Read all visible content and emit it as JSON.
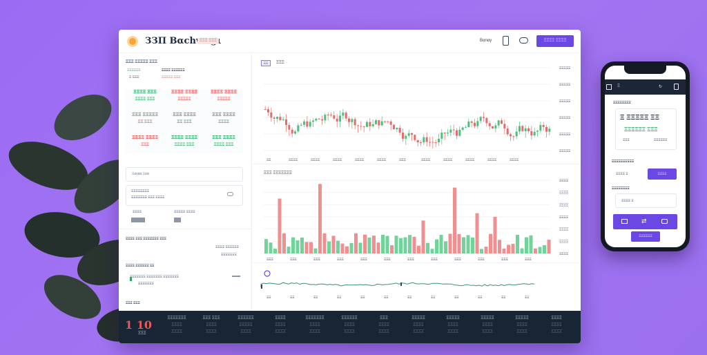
{
  "colors": {
    "background": "#a274f2",
    "accent": "#6b47e3",
    "up": "#2fa464",
    "down": "#e05a5a",
    "ticker_bg": "#172534"
  },
  "header": {
    "brand": "ЗЗΠ Βαchwαgι",
    "badge": "ΞΞΞ ΞΞΞ",
    "nav_link": "Βαnαγ",
    "phone_icon": "phone-icon",
    "toggle_icon": "toggle-icon",
    "signup": "ΞΞΞΞ ΞΞΞΞ"
  },
  "left_panel": {
    "title": "ΞΞΞ ΞΞΞΞΞ ΞΞΞ",
    "price_label": "ΞΞΞΞΞΞ",
    "price_value": "Ξ ΞΞΞ",
    "change_label": "ΞΞΞΞ ΞΞΞΞΞΞ",
    "change_value": "ΞΞΞΞΞ ΞΞΞ",
    "pairs": [
      {
        "name": "ΞΞΞΞ ΞΞΞ",
        "value": "ΞΞΞΞ ΞΞΞ",
        "trend": "up"
      },
      {
        "name": "ΞΞΞΞ ΞΞΞΞ",
        "value": "ΞΞΞΞΞ",
        "trend": "down"
      },
      {
        "name": "ΞΞΞΞ ΞΞΞΞ",
        "value": "ΞΞΞΞΞ",
        "trend": "down"
      },
      {
        "name": "ΞΞΞ ΞΞΞΞΞ",
        "value": "ΞΞ ΞΞΞ",
        "trend": "down"
      },
      {
        "name": "ΞΞΞ ΞΞΞΞ",
        "value": "ΞΞ ΞΞΞ",
        "trend": "up"
      },
      {
        "name": "ΞΞΞ ΞΞΞΞ",
        "value": "ΞΞΞΞ",
        "trend": "up"
      },
      {
        "name": "ΞΞΞΞ ΞΞΞΞ",
        "value": "ΞΞΞ",
        "trend": "down"
      },
      {
        "name": "ΞΞΞΞ ΞΞΞΞ",
        "value": "ΞΞΞΞ ΞΞΞ",
        "trend": "up"
      },
      {
        "name": "ΞΞΞ ΞΞΞΞ",
        "value": "ΞΞΞΞ ΞΞΞ",
        "trend": "up"
      }
    ],
    "search_placeholder": "Ξαναα Ξαα",
    "order_label": "ΞΞΞΞΞΞΞΞ",
    "order_value": "ΞΞΞΞΞΞΞ ΞΞΞ ΞΞΞΞ",
    "chevron_icon": "chevron-icon",
    "amount_label_a": "ΞΞΞΞ",
    "amount_label_b": "ΞΞΞΞΞ ΞΞΞΞ",
    "orderbook_title": "ΞΞΞΞ ΞΞΞ ΞΞΞΞΞΞΞ ΞΞΞ",
    "orderbook_rows": [
      "ΞΞΞΞ ΞΞΞΞΞΞ",
      "ΞΞΞΞΞΞΞ"
    ],
    "history_title": "ΞΞΞΞ ΞΞΞΞΞΞ ΞΞ",
    "history_row": "ΞΞΞΞΞΞΞ ΞΞΞΞΞΞΞ ΞΞΞΞΞΞΞ",
    "history_sub": "ΞΞΞΞΞΞΞ",
    "footer_label": "ΞΞΞ ΞΞΞ"
  },
  "chart_price": {
    "timeframe": "ΞΞ",
    "title": "ΞΞΞ",
    "y_ticks": [
      "ΞΞΞΞΞ",
      "ΞΞΞΞΞ",
      "ΞΞΞΞΞ",
      "ΞΞΞΞΞ",
      "ΞΞΞΞΞ",
      "ΞΞΞΞΞ"
    ],
    "x_ticks": [
      "ΞΞ",
      "ΞΞΞΞ",
      "ΞΞΞΞ",
      "ΞΞΞΞ",
      "ΞΞΞΞ",
      "ΞΞΞΞ",
      "ΞΞΞ",
      "ΞΞΞΞ",
      "ΞΞΞΞ",
      "ΞΞΞΞ",
      "ΞΞΞΞ",
      "ΞΞΞΞ"
    ]
  },
  "chart_volume": {
    "title": "ΞΞΞ ΞΞΞΞΞΞΞ",
    "y_ticks": [
      "ΞΞΞΞ",
      "ΞΞΞΞ",
      "ΞΞΞΞ",
      "ΞΞΞΞ",
      "ΞΞΞΞ",
      "ΞΞΞΞ",
      "ΞΞΞΞ"
    ],
    "x_ticks": [
      "ΞΞΞ",
      "ΞΞΞ",
      "ΞΞΞ",
      "ΞΞΞ",
      "ΞΞΞ",
      "ΞΞΞ",
      "ΞΞΞ",
      "ΞΞΞ",
      "ΞΞΞ",
      "ΞΞΞ",
      "ΞΞΞ",
      "ΞΞΞ"
    ]
  },
  "chart_depth": {
    "icon": "overview-icon",
    "x_ticks": [
      "ΞΞ",
      "ΞΞ",
      "ΞΞ",
      "ΞΞ",
      "ΞΞ",
      "ΞΞ",
      "ΞΞ",
      "ΞΞ",
      "ΞΞ",
      "ΞΞ",
      "ΞΞ",
      "ΞΞ"
    ]
  },
  "ticker": {
    "big_value": "1 10",
    "big_sub": "ΞΞΞ",
    "columns": [
      {
        "name": "ΞΞΞΞΞΞΞ",
        "a": "ΞΞΞΞ",
        "b": "ΞΞΞΞ",
        "a_trend": "down",
        "b_trend": "up"
      },
      {
        "name": "ΞΞΞ ΞΞΞ",
        "a": "ΞΞΞΞ",
        "b": "ΞΞΞΞ",
        "a_trend": "down",
        "b_trend": "up"
      },
      {
        "name": "ΞΞΞΞΞΞ",
        "a": "ΞΞΞΞΞ",
        "b": "ΞΞΞΞ",
        "a_trend": "down",
        "b_trend": "up"
      },
      {
        "name": "ΞΞΞΞ",
        "a": "ΞΞΞΞ",
        "b": "ΞΞΞΞ",
        "a_trend": "down",
        "b_trend": "up"
      },
      {
        "name": "ΞΞΞΞΞΞΞ",
        "a": "ΞΞΞΞ",
        "b": "ΞΞΞΞ",
        "a_trend": "down",
        "b_trend": "up"
      },
      {
        "name": "ΞΞΞΞΞΞ",
        "a": "ΞΞΞΞ",
        "b": "ΞΞΞΞ",
        "a_trend": "down",
        "b_trend": "up"
      },
      {
        "name": "ΞΞΞ",
        "a": "ΞΞΞΞ",
        "b": "ΞΞΞΞ",
        "a_trend": "down",
        "b_trend": "up"
      },
      {
        "name": "ΞΞΞΞΞ",
        "a": "ΞΞΞΞ",
        "b": "ΞΞΞΞ",
        "a_trend": "down",
        "b_trend": "up"
      },
      {
        "name": "ΞΞΞΞΞ",
        "a": "ΞΞΞΞ",
        "b": "ΞΞΞΞ",
        "a_trend": "down",
        "b_trend": "up"
      },
      {
        "name": "ΞΞΞΞΞ",
        "a": "ΞΞΞΞ",
        "b": "ΞΞΞΞ",
        "a_trend": "down",
        "b_trend": "up"
      },
      {
        "name": "ΞΞΞΞΞ",
        "a": "ΞΞΞΞ",
        "b": "ΞΞΞΞ",
        "a_trend": "down",
        "b_trend": "up"
      },
      {
        "name": "ΞΞΞΞ",
        "a": "ΞΞΞΞ",
        "b": "ΞΞΞΞ",
        "a_trend": "down",
        "b_trend": "up"
      }
    ]
  },
  "mobile": {
    "header_left": "Ξ",
    "header_icons": [
      "refresh-icon",
      "menu-icon"
    ],
    "section_title": "ΞΞΞΞΞΞΞΞ",
    "price_big": "Ξ ΞΞΞΞΞ ΞΞ",
    "price_line": "ΞΞΞΞΞΞ ΞΞΞ",
    "price_sub_left": "ΞΞΞ",
    "price_sub_right": "ΞΞΞΞΞΞ",
    "form_label": "ΞΞΞΞΞΞΞΞΞΞ",
    "form_value": "ΞΞΞΞ Ξ",
    "form_button": "ΞΞΞΞ",
    "section2_title": "ΞΞΞΞΞΞΞΞ",
    "field_value": "ΞΞΞΞ Ξ",
    "action_icons": [
      "card-icon",
      "swap-icon",
      "wallet-icon"
    ],
    "bottom_button": "ΞΞΞΞΞΞ"
  }
}
